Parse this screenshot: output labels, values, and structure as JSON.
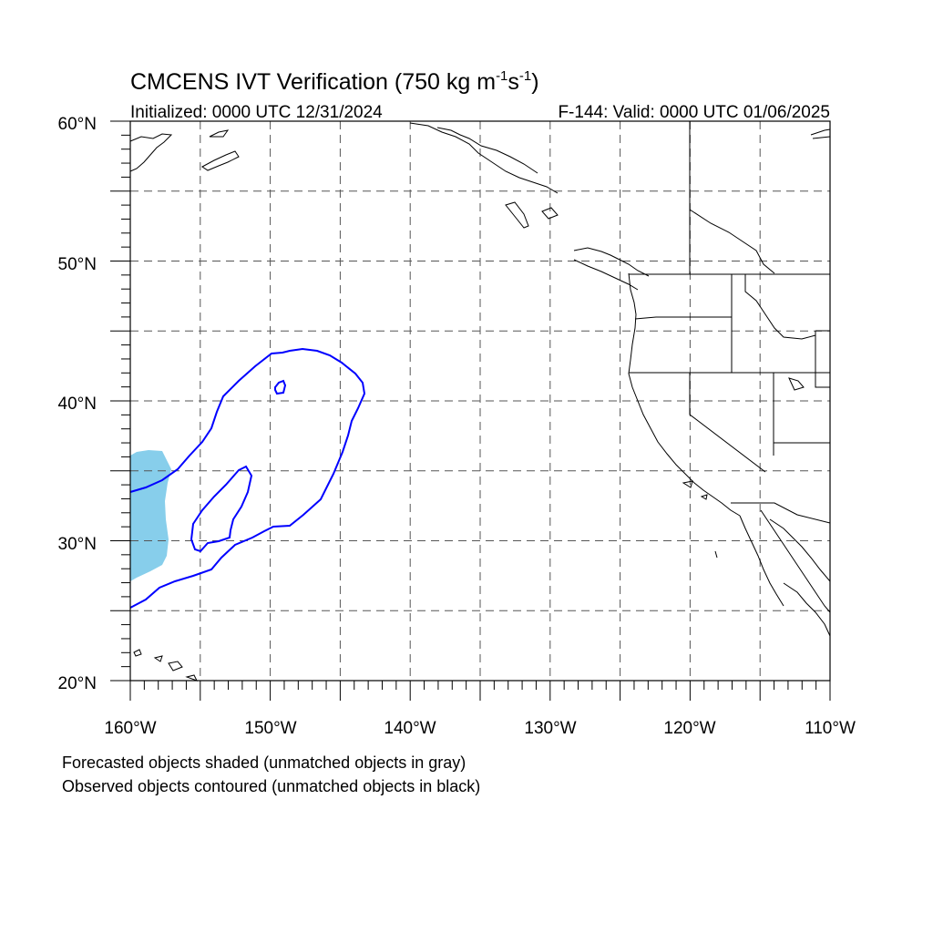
{
  "title": {
    "main_prefix": "CMCENS IVT Verification (750 kg m",
    "exp1": "-1",
    "mid": "s",
    "exp2": "-1",
    "suffix": ")"
  },
  "subtitle": {
    "initialized": "Initialized: 0000 UTC 12/31/2024",
    "valid": "F-144: Valid: 0000 UTC 01/06/2025"
  },
  "map": {
    "lon_range": [
      -160,
      -110
    ],
    "lat_range": [
      20,
      60
    ],
    "grid_step_deg": 5,
    "grid_style": "dashed",
    "lat_labels": [
      "20°N",
      "30°N",
      "40°N",
      "50°N",
      "60°N"
    ],
    "lon_labels": [
      "160°W",
      "150°W",
      "140°W",
      "130°W",
      "120°W",
      "110°W"
    ],
    "colors": {
      "forecast_fill": "#87ceeb",
      "observed_contour": "#0000ff",
      "coastline": "#000000",
      "grid": "#555555"
    }
  },
  "footnotes": {
    "line1": "Forecasted objects shaded (unmatched objects in gray)",
    "line2": "Observed objects contoured (unmatched objects in black)"
  }
}
